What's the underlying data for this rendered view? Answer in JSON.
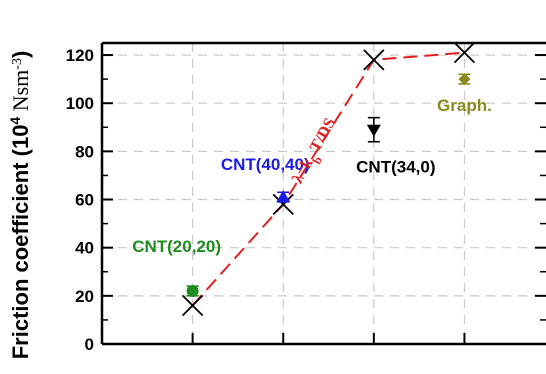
{
  "chart_data": {
    "type": "scatter",
    "ylabel": "Friction coefficient (10",
    "ylabel_exp": "4",
    "ylabel_unit": " Nsm",
    "ylabel_unit_exp": "-3",
    "ylabel_close": ")",
    "ylim": [
      0,
      125
    ],
    "yticks": [
      0,
      20,
      40,
      60,
      80,
      100,
      120
    ],
    "grid": true,
    "x_positions": [
      1,
      2,
      3,
      4
    ],
    "xlim": [
      0,
      4.9
    ],
    "theory": {
      "label_main": "λ=k",
      "label_sub": "b",
      "label_tail": " T/DS",
      "color": "#e02020",
      "points": [
        {
          "x": 1,
          "y": 16
        },
        {
          "x": 2,
          "y": 58
        },
        {
          "x": 3,
          "y": 118
        },
        {
          "x": 4,
          "y": 121
        }
      ]
    },
    "series": [
      {
        "name": "CNT(20,20)",
        "color": "#1e8c1e",
        "marker": "circle",
        "x": 1,
        "y": 22,
        "yerr": 2
      },
      {
        "name": "CNT(40,40)",
        "color": "#1c1ce0",
        "marker": "triangle-up",
        "x": 2,
        "y": 61,
        "yerr": 2
      },
      {
        "name": "CNT(34,0)",
        "color": "#000000",
        "marker": "triangle-down",
        "x": 3,
        "y": 89,
        "yerr": 5
      },
      {
        "name": "Graph.",
        "color": "#8a8a1e",
        "marker": "diamond",
        "x": 4,
        "y": 110,
        "yerr": 2
      }
    ]
  }
}
